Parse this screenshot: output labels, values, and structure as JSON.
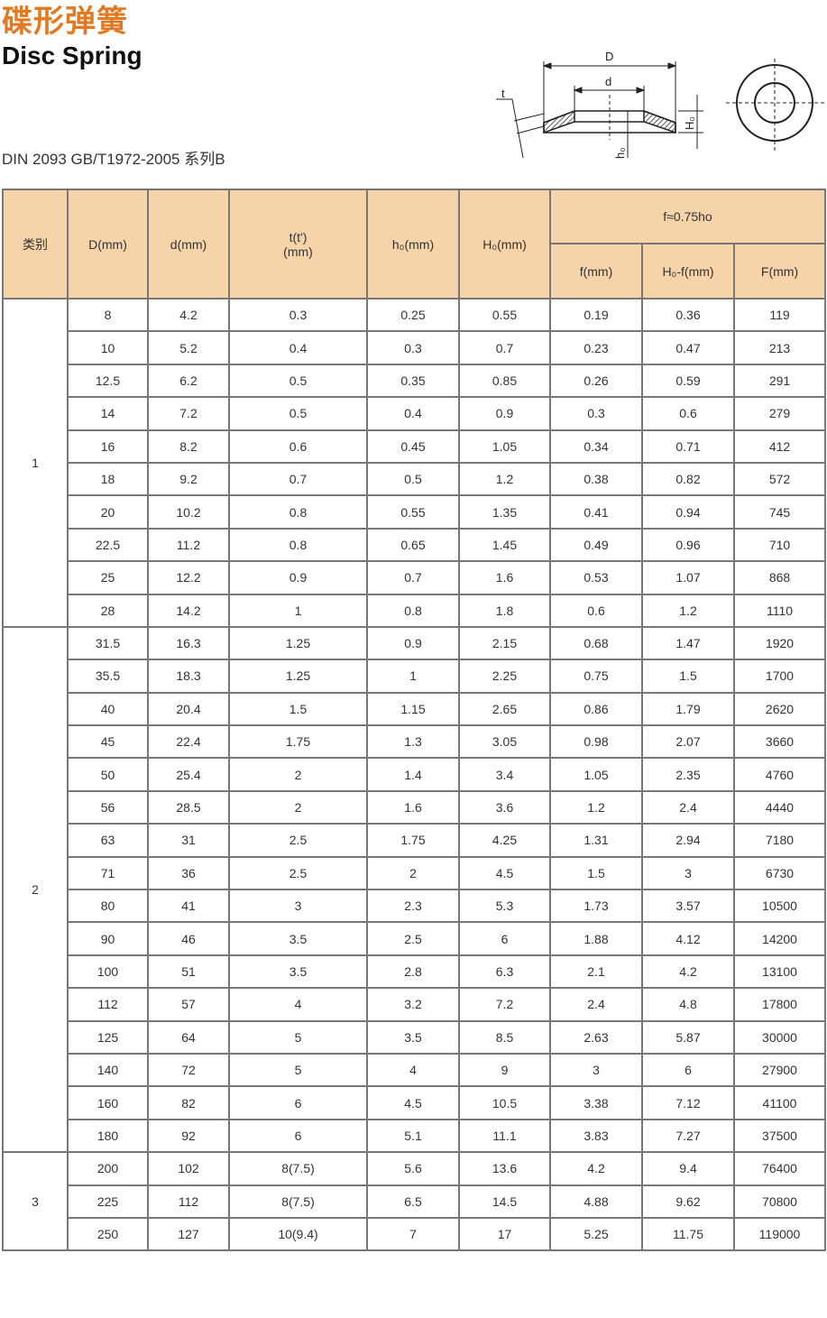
{
  "title_cn": "碟形弹簧",
  "title_en": "Disc Spring",
  "standard": "DIN 2093  GB/T1972-2005  系列B",
  "diagram_labels": {
    "D": "D",
    "d": "d",
    "t": "t",
    "H0": "H₀",
    "h0": "h₀"
  },
  "colors": {
    "title": "#e37a22",
    "header_bg": "#f6d3a8",
    "border": "#777777"
  },
  "table": {
    "headers": {
      "category": "类别",
      "D": "D(mm)",
      "d": "d(mm)",
      "t_line1": "t(t')",
      "t_line2": "(mm)",
      "h0": "h₀(mm)",
      "H0": "H₀(mm)",
      "group": "f≈0.75ho",
      "f": "f(mm)",
      "H0_f": "H₀-f(mm)",
      "F": "F(mm)"
    },
    "groups": [
      {
        "category": "1",
        "rows": [
          [
            "8",
            "4.2",
            "0.3",
            "0.25",
            "0.55",
            "0.19",
            "0.36",
            "119"
          ],
          [
            "10",
            "5.2",
            "0.4",
            "0.3",
            "0.7",
            "0.23",
            "0.47",
            "213"
          ],
          [
            "12.5",
            "6.2",
            "0.5",
            "0.35",
            "0.85",
            "0.26",
            "0.59",
            "291"
          ],
          [
            "14",
            "7.2",
            "0.5",
            "0.4",
            "0.9",
            "0.3",
            "0.6",
            "279"
          ],
          [
            "16",
            "8.2",
            "0.6",
            "0.45",
            "1.05",
            "0.34",
            "0.71",
            "412"
          ],
          [
            "18",
            "9.2",
            "0.7",
            "0.5",
            "1.2",
            "0.38",
            "0.82",
            "572"
          ],
          [
            "20",
            "10.2",
            "0.8",
            "0.55",
            "1.35",
            "0.41",
            "0.94",
            "745"
          ],
          [
            "22.5",
            "11.2",
            "0.8",
            "0.65",
            "1.45",
            "0.49",
            "0.96",
            "710"
          ],
          [
            "25",
            "12.2",
            "0.9",
            "0.7",
            "1.6",
            "0.53",
            "1.07",
            "868"
          ],
          [
            "28",
            "14.2",
            "1",
            "0.8",
            "1.8",
            "0.6",
            "1.2",
            "1110"
          ]
        ]
      },
      {
        "category": "2",
        "rows": [
          [
            "31.5",
            "16.3",
            "1.25",
            "0.9",
            "2.15",
            "0.68",
            "1.47",
            "1920"
          ],
          [
            "35.5",
            "18.3",
            "1.25",
            "1",
            "2.25",
            "0.75",
            "1.5",
            "1700"
          ],
          [
            "40",
            "20.4",
            "1.5",
            "1.15",
            "2.65",
            "0.86",
            "1.79",
            "2620"
          ],
          [
            "45",
            "22.4",
            "1.75",
            "1.3",
            "3.05",
            "0.98",
            "2.07",
            "3660"
          ],
          [
            "50",
            "25.4",
            "2",
            "1.4",
            "3.4",
            "1.05",
            "2.35",
            "4760"
          ],
          [
            "56",
            "28.5",
            "2",
            "1.6",
            "3.6",
            "1.2",
            "2.4",
            "4440"
          ],
          [
            "63",
            "31",
            "2.5",
            "1.75",
            "4.25",
            "1.31",
            "2.94",
            "7180"
          ],
          [
            "71",
            "36",
            "2.5",
            "2",
            "4.5",
            "1.5",
            "3",
            "6730"
          ],
          [
            "80",
            "41",
            "3",
            "2.3",
            "5.3",
            "1.73",
            "3.57",
            "10500"
          ],
          [
            "90",
            "46",
            "3.5",
            "2.5",
            "6",
            "1.88",
            "4.12",
            "14200"
          ],
          [
            "100",
            "51",
            "3.5",
            "2.8",
            "6.3",
            "2.1",
            "4.2",
            "13100"
          ],
          [
            "112",
            "57",
            "4",
            "3.2",
            "7.2",
            "2.4",
            "4.8",
            "17800"
          ],
          [
            "125",
            "64",
            "5",
            "3.5",
            "8.5",
            "2.63",
            "5.87",
            "30000"
          ],
          [
            "140",
            "72",
            "5",
            "4",
            "9",
            "3",
            "6",
            "27900"
          ],
          [
            "160",
            "82",
            "6",
            "4.5",
            "10.5",
            "3.38",
            "7.12",
            "41100"
          ],
          [
            "180",
            "92",
            "6",
            "5.1",
            "11.1",
            "3.83",
            "7.27",
            "37500"
          ]
        ]
      },
      {
        "category": "3",
        "rows": [
          [
            "200",
            "102",
            "8(7.5)",
            "5.6",
            "13.6",
            "4.2",
            "9.4",
            "76400"
          ],
          [
            "225",
            "112",
            "8(7.5)",
            "6.5",
            "14.5",
            "4.88",
            "9.62",
            "70800"
          ],
          [
            "250",
            "127",
            "10(9.4)",
            "7",
            "17",
            "5.25",
            "11.75",
            "119000"
          ]
        ]
      }
    ]
  }
}
